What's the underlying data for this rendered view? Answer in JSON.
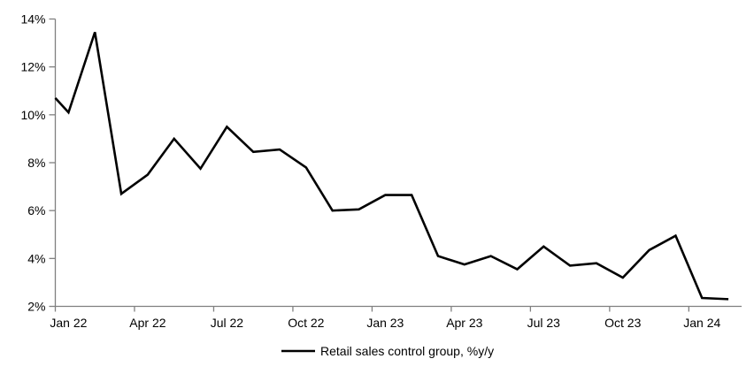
{
  "background_color": "#ffffff",
  "chart_data": {
    "type": "line",
    "title": "",
    "xlabel": "",
    "ylabel": "",
    "grid": false,
    "legend_position": "bottom-center",
    "axis_color": "#808080",
    "text_color": "#000000",
    "ylim": [
      2,
      14
    ],
    "months": [
      "Jan 22",
      "Feb 22",
      "Mar 22",
      "Apr 22",
      "May 22",
      "Jun 22",
      "Jul 22",
      "Aug 22",
      "Sep 22",
      "Oct 22",
      "Nov 22",
      "Dec 22",
      "Jan 23",
      "Feb 23",
      "Mar 23",
      "Apr 23",
      "May 23",
      "Jun 23",
      "Jul 23",
      "Aug 23",
      "Sep 23",
      "Oct 23",
      "Nov 23",
      "Dec 23",
      "Jan 24",
      "Feb 24"
    ],
    "series": [
      {
        "name": "Retail sales control group, %y/y",
        "color": "#000000",
        "left_edge_value": 10.7,
        "values": [
          10.1,
          13.45,
          6.7,
          7.5,
          9.0,
          7.75,
          9.5,
          8.45,
          8.55,
          7.8,
          6.0,
          6.05,
          6.65,
          6.65,
          4.1,
          3.75,
          4.1,
          3.55,
          4.5,
          3.7,
          3.8,
          3.2,
          4.35,
          4.95,
          2.35,
          2.3
        ]
      }
    ],
    "y_ticks": [
      {
        "value": 2,
        "label": "2%"
      },
      {
        "value": 4,
        "label": "4%"
      },
      {
        "value": 6,
        "label": "6%"
      },
      {
        "value": 8,
        "label": "8%"
      },
      {
        "value": 10,
        "label": "10%"
      },
      {
        "value": 12,
        "label": "12%"
      },
      {
        "value": 14,
        "label": "14%"
      }
    ],
    "x_ticks": [
      {
        "index": 0,
        "label": "Jan 22"
      },
      {
        "index": 3,
        "label": "Apr 22"
      },
      {
        "index": 6,
        "label": "Jul 22"
      },
      {
        "index": 9,
        "label": "Oct 22"
      },
      {
        "index": 12,
        "label": "Jan 23"
      },
      {
        "index": 15,
        "label": "Apr 23"
      },
      {
        "index": 18,
        "label": "Jul 23"
      },
      {
        "index": 21,
        "label": "Oct 23"
      },
      {
        "index": 24,
        "label": "Jan 24"
      }
    ],
    "x_tick_boundary_step": 3
  }
}
